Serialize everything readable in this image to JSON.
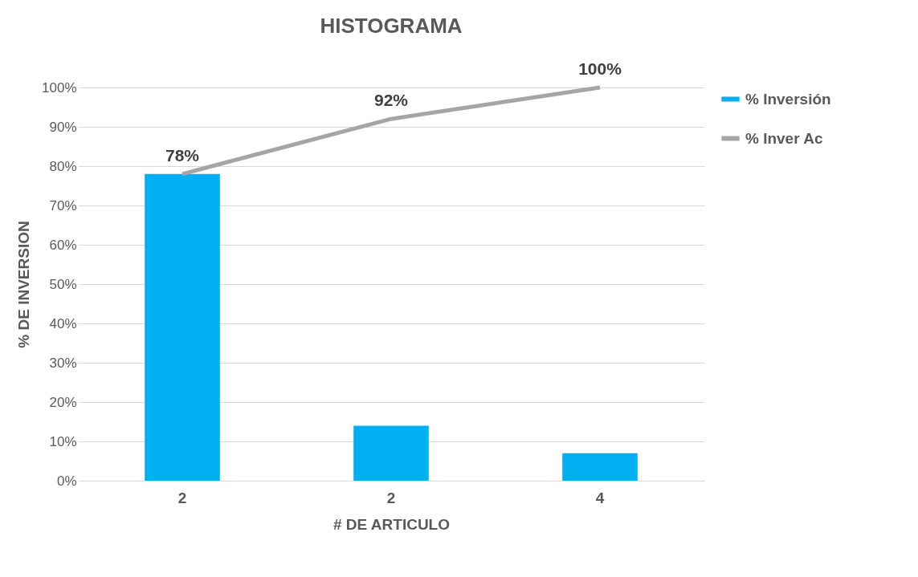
{
  "chart_data": {
    "type": "bar",
    "title": "HISTOGRAMA",
    "xlabel": "# DE ARTICULO",
    "ylabel": "% DE INVERSION",
    "categories": [
      "2",
      "2",
      "4"
    ],
    "series": [
      {
        "name": "% Inversión",
        "color": "#00b0f0",
        "values": [
          78,
          14,
          7
        ]
      },
      {
        "name": "% Inver Ac",
        "type": "line",
        "color": "#a5a5a5",
        "values": [
          78,
          92,
          100
        ],
        "value_labels": [
          "78%",
          "92%",
          "100%"
        ]
      }
    ],
    "ylim": [
      0,
      100
    ],
    "yticks": [
      {
        "value": 0,
        "label": "0%"
      },
      {
        "value": 10,
        "label": "10%"
      },
      {
        "value": 20,
        "label": "20%"
      },
      {
        "value": 30,
        "label": "30%"
      },
      {
        "value": 40,
        "label": "40%"
      },
      {
        "value": 50,
        "label": "50%"
      },
      {
        "value": 60,
        "label": "60%"
      },
      {
        "value": 70,
        "label": "70%"
      },
      {
        "value": 80,
        "label": "80%"
      },
      {
        "value": 90,
        "label": "90%"
      },
      {
        "value": 100,
        "label": "100%"
      }
    ],
    "grid": "y",
    "legend": "right",
    "marker": "none"
  }
}
